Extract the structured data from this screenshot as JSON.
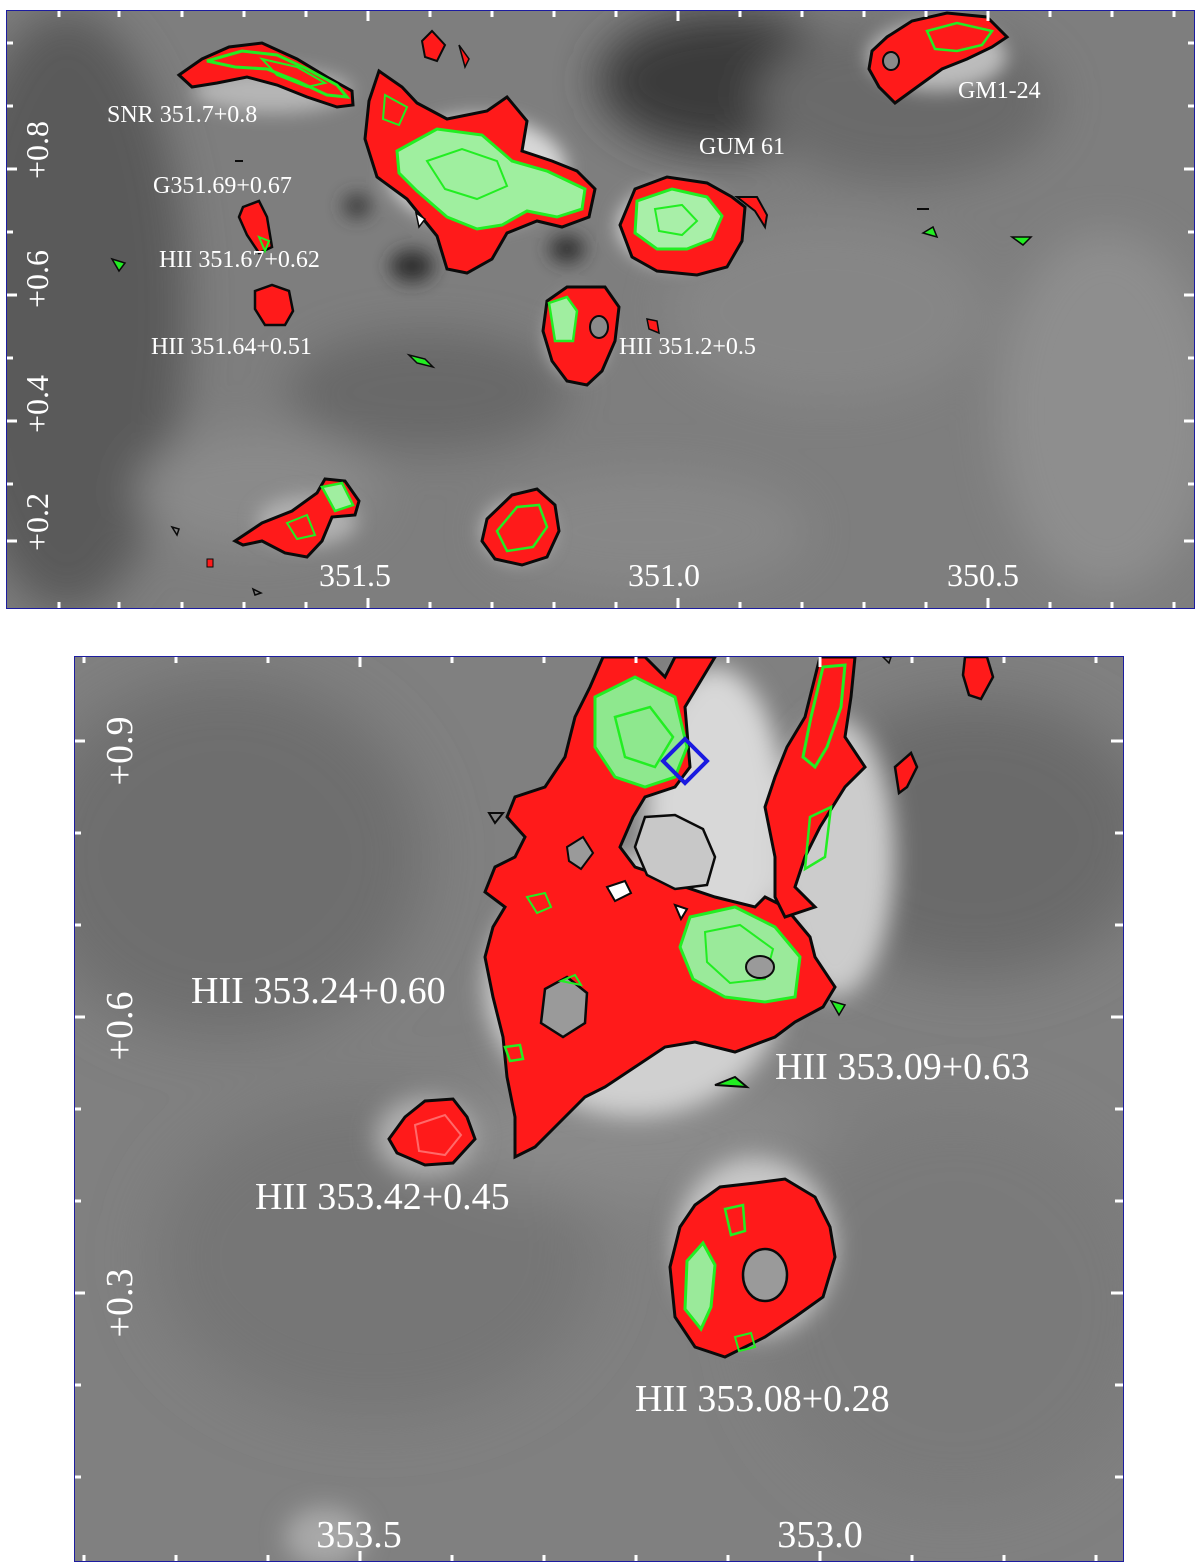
{
  "panels": [
    {
      "id": "top",
      "x_ticks": [
        "351.5",
        "351.0",
        "350.5"
      ],
      "y_ticks": [
        "+0.8",
        "+0.6",
        "+0.4",
        "+0.2"
      ],
      "labels": [
        "SNR 351.7+0.8",
        "G351.69+0.67",
        "HII 351.67+0.62",
        "HII 351.64+0.51",
        "GUM 61",
        "HII 351.2+0.5",
        "GM1-24"
      ]
    },
    {
      "id": "bottom",
      "x_ticks": [
        "353.5",
        "353.0"
      ],
      "y_ticks": [
        "+0.9",
        "+0.6",
        "+0.3"
      ],
      "labels": [
        "HII 353.24+0.60",
        "HII 353.09+0.63",
        "HII 353.42+0.45",
        "HII 353.08+0.28"
      ]
    }
  ],
  "colors": {
    "contour_outer": "#0a0a0a",
    "contour_red": "#ff1a1a",
    "contour_green": "#22ee22",
    "marker_blue": "#1a1ae0",
    "frame": "#1c1ca0",
    "label": "#ffffff"
  },
  "marker": {
    "shape": "diamond",
    "icon": "diamond-marker-icon"
  }
}
